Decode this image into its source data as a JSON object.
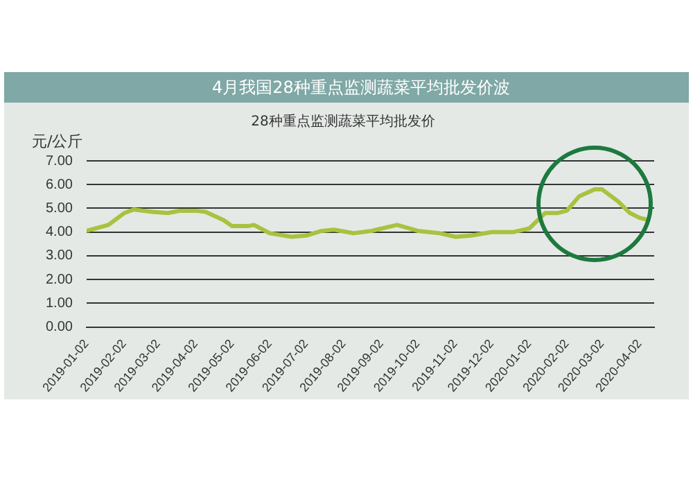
{
  "chart_data": {
    "type": "line",
    "title": "4月我国28种重点监测蔬菜平均批发价波",
    "subtitle": "28种重点监测蔬菜平均批发价",
    "ylabel": "元/公斤",
    "x": [
      "2019-01-02",
      "2019-01-20",
      "2019-02-02",
      "2019-02-10",
      "2019-02-25",
      "2019-03-10",
      "2019-03-20",
      "2019-04-02",
      "2019-04-10",
      "2019-04-25",
      "2019-05-02",
      "2019-05-15",
      "2019-05-20",
      "2019-06-02",
      "2019-06-20",
      "2019-07-02",
      "2019-07-15",
      "2019-07-25",
      "2019-08-10",
      "2019-08-25",
      "2019-09-15",
      "2019-10-02",
      "2019-10-20",
      "2019-11-02",
      "2019-11-15",
      "2019-12-02",
      "2019-12-20",
      "2020-01-02",
      "2020-01-15",
      "2020-01-25",
      "2020-02-02",
      "2020-02-12",
      "2020-02-25",
      "2020-03-02",
      "2020-03-15",
      "2020-03-25",
      "2020-04-02",
      "2020-04-10"
    ],
    "series": [
      {
        "color": "#a9c23f",
        "values": [
          4.05,
          4.3,
          4.8,
          4.95,
          4.85,
          4.8,
          4.9,
          4.9,
          4.85,
          4.5,
          4.25,
          4.25,
          4.3,
          3.95,
          3.8,
          3.85,
          4.05,
          4.1,
          3.95,
          4.05,
          4.3,
          4.05,
          3.95,
          3.8,
          3.85,
          4.0,
          4.0,
          4.15,
          4.8,
          4.8,
          4.9,
          5.5,
          5.8,
          5.8,
          5.3,
          4.8,
          4.6,
          4.5
        ]
      }
    ],
    "xlim": [
      "2019-01-02",
      "2020-04-14"
    ],
    "xticks": [
      "2019-01-02",
      "2019-02-02",
      "2019-03-02",
      "2019-04-02",
      "2019-05-02",
      "2019-06-02",
      "2019-07-02",
      "2019-08-02",
      "2019-09-02",
      "2019-10-02",
      "2019-11-02",
      "2019-12-02",
      "2020-01-02",
      "2020-02-02",
      "2020-03-02",
      "2020-04-02"
    ],
    "ylim": [
      0,
      7
    ],
    "yticks": [
      {
        "value": 0,
        "label": "0.00"
      },
      {
        "value": 1,
        "label": "1.00"
      },
      {
        "value": 2,
        "label": "2.00"
      },
      {
        "value": 3,
        "label": "3.00"
      },
      {
        "value": 4,
        "label": "4.00"
      },
      {
        "value": 5,
        "label": "5.00"
      },
      {
        "value": 6,
        "label": "6.00"
      },
      {
        "value": 7,
        "label": "7.00"
      }
    ],
    "grid": "y",
    "marker": "none",
    "line_style": "solid"
  }
}
